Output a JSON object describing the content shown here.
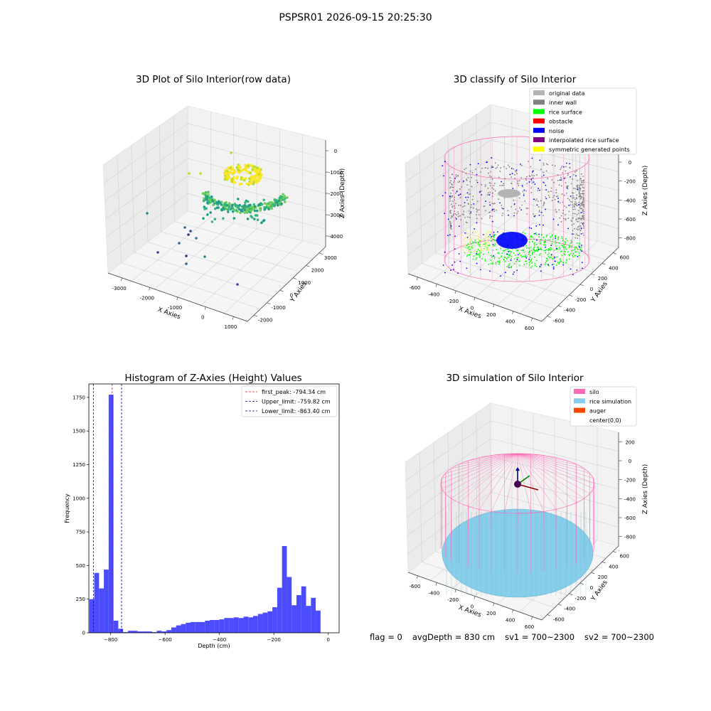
{
  "figure": {
    "title": "PSPSR01 2026-09-15 20:25:30"
  },
  "status": {
    "flag": "flag = 0",
    "avgDepth": "avgDepth = 830 cm",
    "sv1": "sv1 = 700~2300",
    "sv2": "sv2 = 700~2300"
  },
  "chart_data": [
    {
      "type": "scatter",
      "title": "3D Plot of Silo Interior(row data)",
      "xlabel": "X Axies",
      "ylabel": "Y Axies",
      "zlabel": "Z Axies (Depth)",
      "x_ticks": [
        "-3000",
        "-2000",
        "-1000",
        "0",
        "1000"
      ],
      "y_ticks": [
        "-2000",
        "-1000",
        "0",
        "1000",
        "2000",
        "3000"
      ],
      "z_ticks": [
        "-4000",
        "-3000",
        "-2000",
        "-1000",
        "0"
      ],
      "colormap": "viridis"
    },
    {
      "type": "scatter",
      "title": "3D classify of Silo Interior",
      "xlabel": "X Axies",
      "ylabel": "Y Axies",
      "zlabel": "Z Axies (Depth)",
      "x_ticks": [
        "-600",
        "-400",
        "-200",
        "0",
        "200",
        "400",
        "600"
      ],
      "y_ticks": [
        "-600",
        "-400",
        "-200",
        "0",
        "200",
        "400",
        "600"
      ],
      "z_ticks": [
        "-800",
        "-600",
        "-400",
        "-200",
        "0",
        "200"
      ],
      "legend_position": "top-right",
      "legend": [
        {
          "label": "original data",
          "color": "#b3b3b3"
        },
        {
          "label": "inner wall",
          "color": "#808080"
        },
        {
          "label": "rice surface",
          "color": "#00ff00"
        },
        {
          "label": "obstacle",
          "color": "#ff0000"
        },
        {
          "label": "noise",
          "color": "#0000ff"
        },
        {
          "label": "interpolated rice surface",
          "color": "#800080"
        },
        {
          "label": "symmetric generated points",
          "color": "#ffff00"
        }
      ],
      "silo_outline_color": "#ff69b4"
    },
    {
      "type": "bar",
      "title": "Histogram of Z-Axies (Height) Values",
      "xlabel": "Depth (cm)",
      "ylabel": "Frequency",
      "xlim": [
        -880,
        40
      ],
      "ylim": [
        0,
        1850
      ],
      "x_ticks": [
        -800,
        -600,
        -400,
        -200,
        0
      ],
      "y_ticks": [
        0,
        250,
        500,
        750,
        1000,
        1250,
        1500,
        1750
      ],
      "bar_color": "#4c4cff",
      "bin_width": 17.7,
      "bin_start": -878,
      "values": [
        250,
        445,
        330,
        470,
        1770,
        90,
        30,
        5,
        15,
        15,
        10,
        10,
        10,
        5,
        15,
        10,
        20,
        40,
        55,
        65,
        75,
        80,
        80,
        80,
        90,
        95,
        95,
        100,
        110,
        110,
        115,
        110,
        120,
        115,
        125,
        140,
        150,
        160,
        190,
        335,
        645,
        415,
        205,
        280,
        345,
        200,
        260,
        165
      ],
      "lines": [
        {
          "label": "first_peak: -794.34 cm",
          "x": -794.34,
          "color": "#ff0000"
        },
        {
          "label": "Upper_limit: -759.82 cm",
          "x": -759.82,
          "color": "#0000aa"
        },
        {
          "label": "Lower_limit: -863.40 cm",
          "x": -863.4,
          "color": "#0000aa"
        }
      ],
      "legend_position": "top-right"
    },
    {
      "type": "scatter",
      "title": "3D simulation of Silo Interior",
      "xlabel": "X Axies",
      "ylabel": "Y Axies",
      "zlabel": "Z Axies (Depth)",
      "x_ticks": [
        "-600",
        "-400",
        "-200",
        "0",
        "200",
        "400",
        "600"
      ],
      "y_ticks": [
        "-600",
        "-400",
        "-200",
        "0",
        "200",
        "400",
        "600"
      ],
      "z_ticks": [
        "-800",
        "-600",
        "-400",
        "-200",
        "0",
        "200"
      ],
      "legend_position": "top-right",
      "legend": [
        {
          "label": "silo",
          "color": "#ff69b4"
        },
        {
          "label": "rice simulation",
          "color": "#87ceeb"
        },
        {
          "label": "auger",
          "color": "#ff4500"
        },
        {
          "label": "center(0,0)",
          "color": "#ffffff"
        }
      ]
    }
  ]
}
